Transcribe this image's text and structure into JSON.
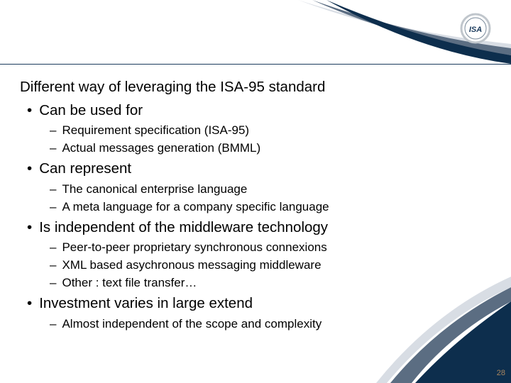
{
  "logo": {
    "text": "ISA",
    "circle_color": "#ffffff",
    "ring_color": "#c0c6cc",
    "text_color": "#1a3a5c"
  },
  "header": {
    "line_color": "#1a3a5c",
    "swoosh_navy": "#0d2e4d",
    "swoosh_steel": "#5b6d82",
    "swoosh_light": "#d8dde4"
  },
  "heading": "Different way of leveraging the ISA-95 standard",
  "bullets": [
    {
      "level": 1,
      "text": "Can be used for"
    },
    {
      "level": 2,
      "text": "Requirement specification (ISA-95)"
    },
    {
      "level": 2,
      "text": "Actual messages generation (BMML)"
    },
    {
      "level": 1,
      "text": "Can represent"
    },
    {
      "level": 2,
      "text": "The canonical enterprise language"
    },
    {
      "level": 2,
      "text": "A meta language for a company specific language"
    },
    {
      "level": 1,
      "text": "Is independent of the middleware technology"
    },
    {
      "level": 2,
      "text": "Peer-to-peer proprietary synchronous connexions"
    },
    {
      "level": 2,
      "text": "XML based asychronous messaging middleware"
    },
    {
      "level": 2,
      "text": "Other : text file transfer…"
    },
    {
      "level": 1,
      "text": "Investment varies in large extend"
    },
    {
      "level": 2,
      "text": "Almost independent of the scope and complexity"
    }
  ],
  "page_number": "28",
  "footer": {
    "swoosh_navy": "#0d2e4d",
    "swoosh_steel": "#5b6d82",
    "swoosh_light": "#d8dde4"
  },
  "colors": {
    "text": "#000000",
    "page_num": "#a8865f",
    "bg": "#ffffff"
  }
}
